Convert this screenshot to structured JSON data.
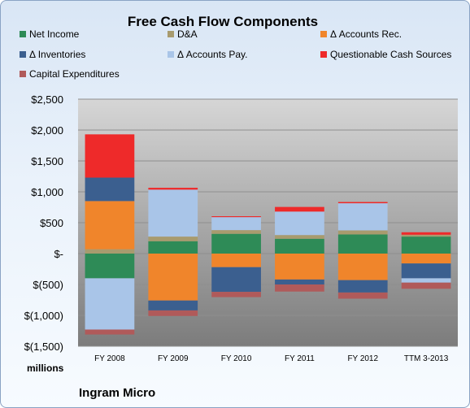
{
  "chart_data": {
    "type": "bar",
    "stacked": true,
    "title": "Free Cash Flow Components",
    "y_unit_label": "millions",
    "company": "Ingram Micro",
    "categories": [
      "FY 2008",
      "FY 2009",
      "FY 2010",
      "FY 2011",
      "FY 2012",
      "TTM 3-2013"
    ],
    "ylim": [
      -1500,
      2500
    ],
    "yticks": [
      2500,
      2000,
      1500,
      1000,
      500,
      0,
      -500,
      -1000,
      -1500
    ],
    "ytick_labels": [
      "$2,500",
      "$2,000",
      "$1,500",
      "$1,000",
      "$500",
      "$-",
      "$(500)",
      "$(1,000)",
      "$(1,500)"
    ],
    "grid": true,
    "legend_position": "top",
    "series": [
      {
        "name": "Net Income",
        "color": "#2e8b57",
        "values": [
          -400,
          200,
          320,
          240,
          310,
          275
        ]
      },
      {
        "name": "D&A",
        "color": "#a89b6e",
        "values": [
          70,
          75,
          60,
          60,
          65,
          30
        ]
      },
      {
        "name": "Δ Accounts Rec.",
        "color": "#f0852b",
        "values": [
          780,
          -760,
          -220,
          -420,
          -430,
          -160
        ]
      },
      {
        "name": "Δ Inventories",
        "color": "#3b5f8f",
        "values": [
          380,
          -160,
          -400,
          -80,
          -200,
          -240
        ]
      },
      {
        "name": "Δ Accounts Pay.",
        "color": "#a9c5e8",
        "values": [
          -830,
          760,
          210,
          380,
          440,
          -70
        ]
      },
      {
        "name": "Questionable Cash Sources",
        "color": "#ee2a2a",
        "values": [
          700,
          30,
          15,
          75,
          20,
          40
        ]
      },
      {
        "name": "Capital Expenditures",
        "color": "#b05a5a",
        "values": [
          -80,
          -90,
          -85,
          -115,
          -100,
          -100
        ]
      }
    ]
  }
}
